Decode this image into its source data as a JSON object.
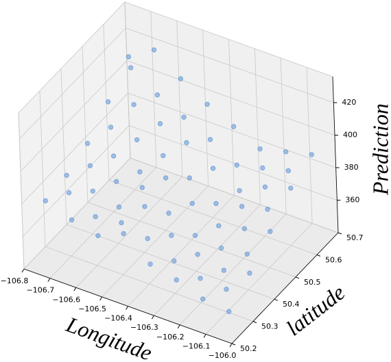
{
  "chart_data": {
    "type": "scatter3d",
    "xlabel": "Longitude",
    "ylabel": "latitude",
    "zlabel": "Prediction",
    "color": "#6a9bd8",
    "xlim": [
      -106.8,
      -106.0
    ],
    "ylim": [
      50.2,
      50.7
    ],
    "zlim": [
      340,
      436
    ],
    "xticks": [
      {
        "value": -106.8,
        "label": "−106.8"
      },
      {
        "value": -106.7,
        "label": "−106.7"
      },
      {
        "value": -106.6,
        "label": "−106.6"
      },
      {
        "value": -106.5,
        "label": "−106.5"
      },
      {
        "value": -106.4,
        "label": "−106.4"
      },
      {
        "value": -106.3,
        "label": "−106.3"
      },
      {
        "value": -106.2,
        "label": "−106.2"
      },
      {
        "value": -106.1,
        "label": "−106.1"
      },
      {
        "value": -106.0,
        "label": "−106.0"
      }
    ],
    "yticks": [
      50.2,
      50.3,
      50.4,
      50.5,
      50.6,
      50.7
    ],
    "zticks": [
      360,
      380,
      400,
      420
    ],
    "grid": true,
    "x": [
      -106.75,
      -106.65,
      -106.55,
      -106.45,
      -106.35,
      -106.25,
      -106.15,
      -106.05,
      -106.75,
      -106.65,
      -106.55,
      -106.45,
      -106.35,
      -106.25,
      -106.15,
      -106.05,
      -106.75,
      -106.65,
      -106.55,
      -106.45,
      -106.35,
      -106.25,
      -106.15,
      -106.05,
      -106.75,
      -106.65,
      -106.55,
      -106.45,
      -106.35,
      -106.25,
      -106.15,
      -106.05,
      -106.75,
      -106.65,
      -106.55,
      -106.45,
      -106.35,
      -106.25,
      -106.15,
      -106.05,
      -106.7,
      -106.6,
      -106.5,
      -106.4,
      -106.3,
      -106.2,
      -106.1,
      -106.7,
      -106.6,
      -106.5,
      -106.4,
      -106.3,
      -106.2,
      -106.1,
      -106.7,
      -106.6,
      -106.5,
      -106.4,
      -106.3,
      -106.2,
      -106.1,
      -106.7,
      -106.6,
      -106.5,
      -106.4,
      -106.3,
      -106.2,
      -106.1
    ],
    "y": [
      50.25,
      50.25,
      50.25,
      50.25,
      50.25,
      50.25,
      50.25,
      50.25,
      50.35,
      50.35,
      50.35,
      50.35,
      50.35,
      50.35,
      50.35,
      50.35,
      50.45,
      50.45,
      50.45,
      50.45,
      50.45,
      50.45,
      50.45,
      50.45,
      50.55,
      50.55,
      50.55,
      50.55,
      50.55,
      50.55,
      50.55,
      50.55,
      50.65,
      50.65,
      50.65,
      50.65,
      50.65,
      50.65,
      50.65,
      50.65,
      50.3,
      50.3,
      50.3,
      50.3,
      50.3,
      50.3,
      50.3,
      50.4,
      50.4,
      50.4,
      50.4,
      50.4,
      50.4,
      50.4,
      50.5,
      50.5,
      50.5,
      50.5,
      50.5,
      50.5,
      50.5,
      50.6,
      50.6,
      50.6,
      50.6,
      50.6,
      50.6,
      50.6
    ],
    "z": [
      378,
      372,
      368,
      375,
      362,
      358,
      352,
      350,
      380,
      376,
      372,
      378,
      366,
      360,
      356,
      360,
      386,
      384,
      380,
      382,
      372,
      364,
      368,
      372,
      398,
      402,
      396,
      390,
      380,
      372,
      380,
      385,
      412,
      422,
      410,
      400,
      392,
      384,
      388,
      392,
      379,
      370,
      372,
      368,
      360,
      355,
      354,
      382,
      378,
      380,
      370,
      362,
      360,
      362,
      392,
      390,
      386,
      378,
      368,
      372,
      376,
      415,
      404,
      396,
      388,
      378,
      382,
      386
    ]
  }
}
